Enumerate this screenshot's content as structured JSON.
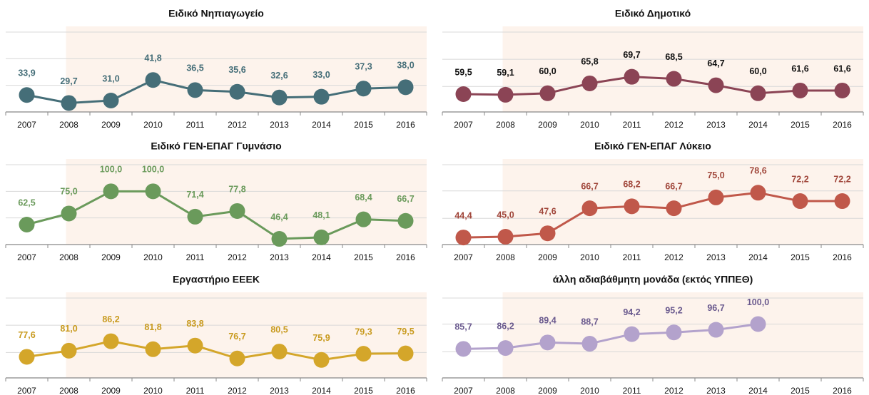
{
  "chart_data": [
    {
      "type": "line",
      "title": "Ειδικό Νηπιαγωγείο",
      "categories": [
        "2007",
        "2008",
        "2009",
        "2010",
        "2011",
        "2012",
        "2013",
        "2014",
        "2015",
        "2016"
      ],
      "values": [
        33.9,
        29.7,
        31.0,
        41.8,
        36.5,
        35.6,
        32.6,
        33.0,
        37.3,
        38.0
      ],
      "value_labels": [
        "33,9",
        "29,7",
        "31,0",
        "41,8",
        "36,5",
        "35,6",
        "32,6",
        "33,0",
        "37,3",
        "38,0"
      ],
      "color": "#456e78",
      "label_color": "#456e78",
      "ylim": [
        25,
        67
      ],
      "yticks": [
        25,
        39,
        53,
        67
      ],
      "grid": true
    },
    {
      "type": "line",
      "title": "Ειδικό Δημοτικό",
      "categories": [
        "2007",
        "2008",
        "2009",
        "2010",
        "2011",
        "2012",
        "2013",
        "2014",
        "2015",
        "2016"
      ],
      "values": [
        59.5,
        59.1,
        60.0,
        65.8,
        69.7,
        68.5,
        64.7,
        60.0,
        61.6,
        61.6
      ],
      "value_labels": [
        "59,5",
        "59,1",
        "60,0",
        "65,8",
        "69,7",
        "68,5",
        "64,7",
        "60,0",
        "61,6",
        "61,6"
      ],
      "color": "#8b4455",
      "label_color": "#111111",
      "ylim": [
        49,
        96
      ],
      "yticks": [
        49,
        64,
        80,
        96
      ],
      "grid": true
    },
    {
      "type": "line",
      "title": "Ειδικό ΓΕΝ-ΕΠΑΓ Γυμνάσιο",
      "categories": [
        "2007",
        "2008",
        "2009",
        "2010",
        "2011",
        "2012",
        "2013",
        "2014",
        "2015",
        "2016"
      ],
      "values": [
        62.5,
        75.0,
        100.0,
        100.0,
        71.4,
        77.8,
        46.4,
        48.1,
        68.4,
        66.7
      ],
      "value_labels": [
        "62,5",
        "75,0",
        "100,0",
        "100,0",
        "71,4",
        "77,8",
        "46,4",
        "48,1",
        "68,4",
        "66,7"
      ],
      "color": "#6a9a5b",
      "label_color": "#6a9a5b",
      "ylim": [
        40,
        130
      ],
      "yticks": [
        40,
        70,
        100,
        130
      ],
      "grid": true
    },
    {
      "type": "line",
      "title": "Ειδικό ΓΕΝ-ΕΠΑΓ Λύκειο",
      "categories": [
        "2007",
        "2008",
        "2009",
        "2010",
        "2011",
        "2012",
        "2013",
        "2014",
        "2015",
        "2016"
      ],
      "values": [
        44.4,
        45.0,
        47.6,
        66.7,
        68.2,
        66.7,
        75.0,
        78.6,
        72.2,
        72.2
      ],
      "value_labels": [
        "44,4",
        "45,0",
        "47,6",
        "66,7",
        "68,2",
        "66,7",
        "75,0",
        "78,6",
        "72,2",
        "72,2"
      ],
      "color": "#c0584a",
      "label_color": "#a0463a",
      "ylim": [
        39,
        100
      ],
      "yticks": [
        39,
        59,
        80,
        100
      ],
      "grid": true
    },
    {
      "type": "line",
      "title": "Εργαστήριο ΕΕΕΚ",
      "categories": [
        "2007",
        "2008",
        "2009",
        "2010",
        "2011",
        "2012",
        "2013",
        "2014",
        "2015",
        "2016"
      ],
      "values": [
        77.6,
        81.0,
        86.2,
        81.8,
        83.8,
        76.7,
        80.5,
        75.9,
        79.3,
        79.5
      ],
      "value_labels": [
        "77,6",
        "81,0",
        "86,2",
        "81,8",
        "83,8",
        "76,7",
        "80,5",
        "75,9",
        "79,3",
        "79,5"
      ],
      "color": "#d4a62a",
      "label_color": "#c89a1e",
      "ylim": [
        66,
        110
      ],
      "yticks": [
        66,
        80,
        95,
        110
      ],
      "grid": true
    },
    {
      "type": "line",
      "title": "άλλη αδιαβάθμητη μονάδα (εκτός ΥΠΠΕΘ)",
      "categories": [
        "2007",
        "2008",
        "2009",
        "2010",
        "2011",
        "2012",
        "2013",
        "2014",
        "2015",
        "2016"
      ],
      "values": [
        85.7,
        86.2,
        89.4,
        88.7,
        94.2,
        95.2,
        96.7,
        100.0,
        null,
        null
      ],
      "value_labels": [
        "85,7",
        "86,2",
        "89,4",
        "88,7",
        "94,2",
        "95,2",
        "96,7",
        "100,0",
        null,
        null
      ],
      "color": "#b3a2cc",
      "label_color": "#6a5a8e",
      "ylim": [
        69,
        115
      ],
      "yticks": [
        69,
        84,
        100,
        115
      ],
      "grid": true
    }
  ]
}
